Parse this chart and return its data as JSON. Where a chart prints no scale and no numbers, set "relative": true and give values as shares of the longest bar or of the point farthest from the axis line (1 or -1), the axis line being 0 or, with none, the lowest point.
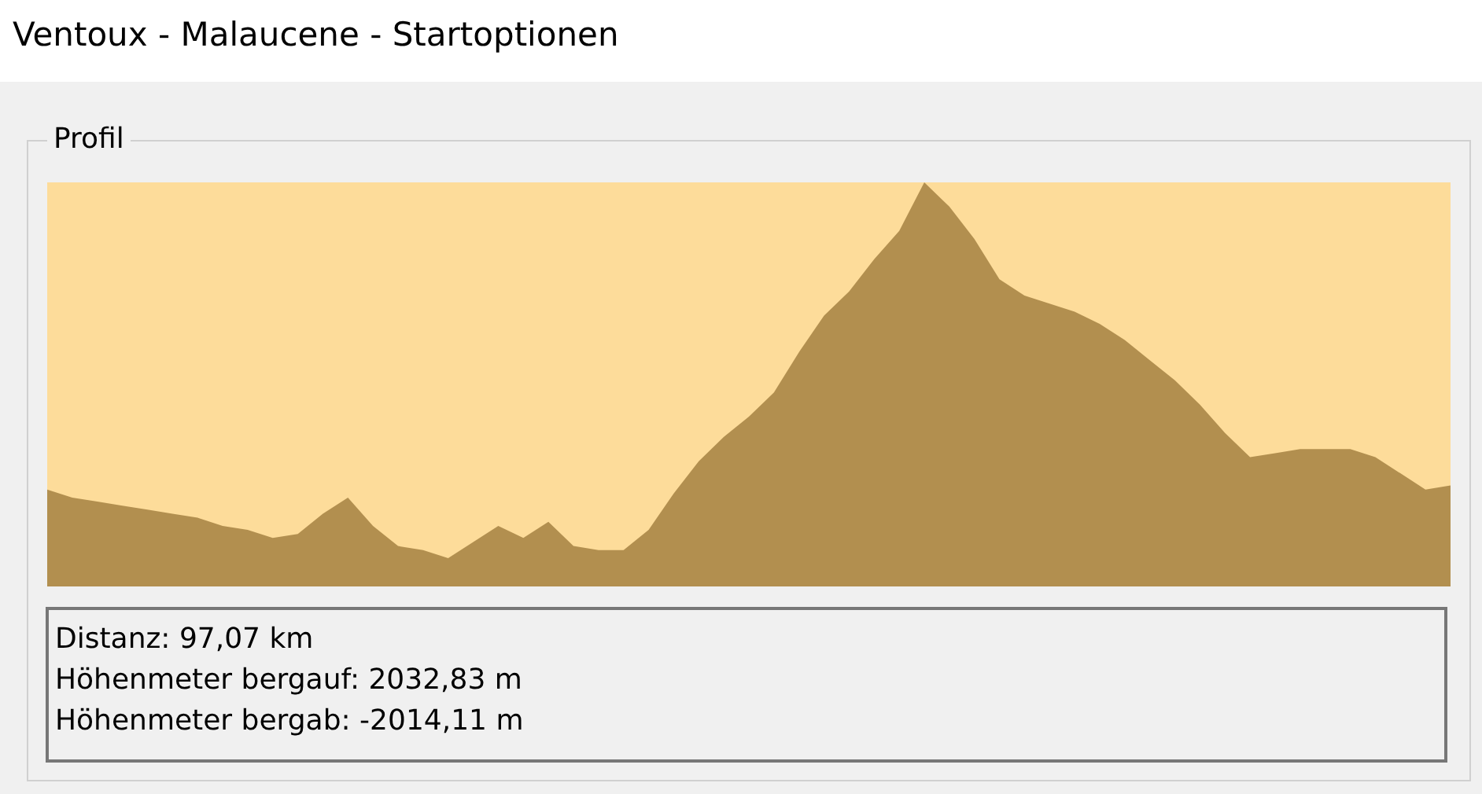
{
  "chart_data": {
    "type": "area",
    "title": "Ventoux - Malaucene - Startoptionen",
    "subtitle": "Profil",
    "relative": true,
    "categories": [
      null,
      null,
      null,
      null,
      null,
      null,
      null,
      null,
      null,
      null,
      null,
      null,
      null,
      null,
      null,
      null,
      null,
      null,
      null,
      null,
      null,
      null,
      null,
      null,
      null,
      null,
      null,
      null,
      null,
      null,
      null,
      null,
      null,
      null,
      null,
      null,
      null,
      null,
      null,
      null,
      null,
      null,
      null,
      null,
      null,
      null,
      null,
      null,
      null,
      null,
      null,
      null,
      null,
      null,
      null,
      null,
      null
    ],
    "series": [
      {
        "color": "#b28f4f",
        "values": [
          0.24,
          0.22,
          0.21,
          0.2,
          0.19,
          0.18,
          0.17,
          0.15,
          0.14,
          0.12,
          0.13,
          0.18,
          0.22,
          0.15,
          0.1,
          0.09,
          0.07,
          0.11,
          0.15,
          0.12,
          0.16,
          0.1,
          0.09,
          0.09,
          0.14,
          0.23,
          0.31,
          0.37,
          0.42,
          0.48,
          0.58,
          0.67,
          0.73,
          0.81,
          0.88,
          1,
          0.94,
          0.86,
          0.76,
          0.72,
          0.7,
          0.68,
          0.65,
          0.61,
          0.56,
          0.51,
          0.45,
          0.38,
          0.32,
          0.33,
          0.34,
          0.34,
          0.34,
          0.32,
          0.28,
          0.24,
          0.25
        ]
      }
    ],
    "annotations": [
      "Distanz: 97,07 km",
      "Höhenmeter bergauf: 2032,83 m",
      "Höhenmeter bergab: -2014,11 m"
    ]
  }
}
